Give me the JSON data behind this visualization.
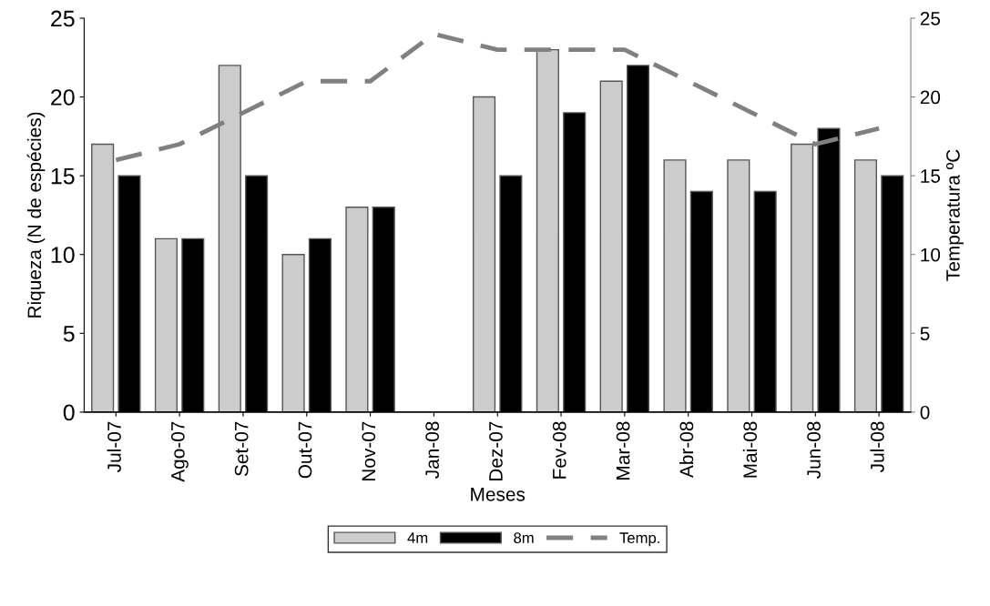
{
  "chart_data": {
    "type": "bar",
    "xlabel": "Meses",
    "ylabel": "Riqueza (N de espécies)",
    "y2label": "Temperatura ºC",
    "categories": [
      "Jul-07",
      "Ago-07",
      "Set-07",
      "Out-07",
      "Nov-07",
      "Jan-08",
      "Dez-07",
      "Fev-08",
      "Mar-08",
      "Abr-08",
      "Mai-08",
      "Jun-08",
      "Jul-08"
    ],
    "series": [
      {
        "name": "4m",
        "color": "#cccccc",
        "values": [
          17,
          11,
          22,
          10,
          13,
          null,
          20,
          23,
          21,
          16,
          16,
          17,
          16
        ]
      },
      {
        "name": "8m",
        "color": "#000000",
        "values": [
          15,
          11,
          15,
          11,
          13,
          null,
          15,
          19,
          22,
          14,
          14,
          18,
          15
        ]
      },
      {
        "name": "Temp.",
        "type": "line",
        "axis": "y2",
        "color": "#808080",
        "line_style": "dashed",
        "values": [
          16,
          17,
          19,
          21,
          21,
          24,
          23,
          23,
          23,
          21,
          19,
          17,
          18
        ]
      }
    ],
    "ylim": [
      0,
      25
    ],
    "yticks": [
      0,
      5,
      10,
      15,
      20,
      25
    ],
    "y2lim": [
      0,
      25
    ],
    "y2ticks": [
      0,
      5,
      10,
      15,
      20,
      25
    ],
    "grid": false,
    "legend": "bottom"
  }
}
